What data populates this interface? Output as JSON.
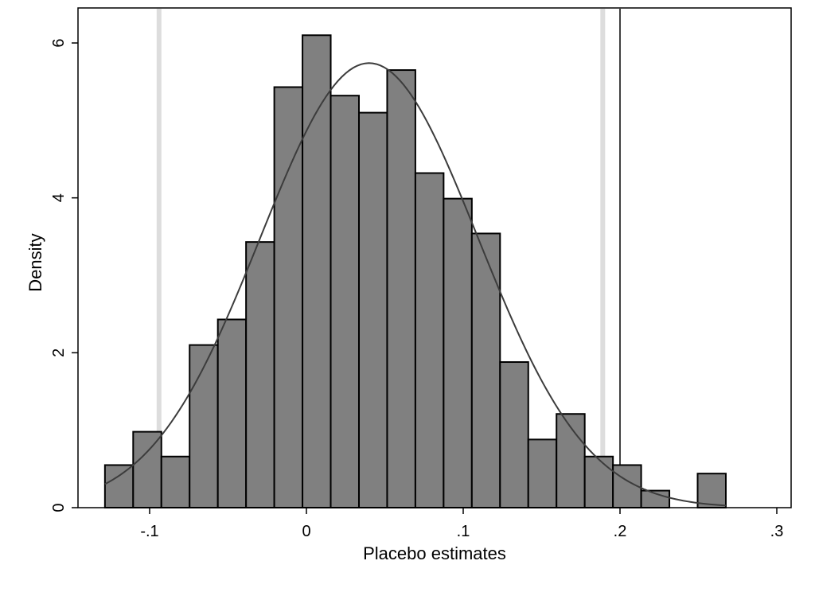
{
  "chart_data": {
    "type": "bar",
    "subtype": "histogram",
    "title": "",
    "xlabel": "Placebo estimates",
    "ylabel": "Density",
    "xlim": [
      -0.15,
      0.31
    ],
    "ylim": [
      0,
      6.35
    ],
    "x_ticks": [
      {
        "value": -0.1,
        "label": "-.1"
      },
      {
        "value": 0,
        "label": "0"
      },
      {
        "value": 0.1,
        "label": ".1"
      },
      {
        "value": 0.2,
        "label": ".2"
      },
      {
        "value": 0.3,
        "label": ".3"
      }
    ],
    "y_ticks": [
      {
        "value": 0,
        "label": "0"
      },
      {
        "value": 2,
        "label": "2"
      },
      {
        "value": 4,
        "label": "4"
      },
      {
        "value": 6,
        "label": "6"
      }
    ],
    "bins": [
      {
        "start": -0.1285,
        "end": -0.1105,
        "density": 0.55
      },
      {
        "start": -0.1105,
        "end": -0.0925,
        "density": 0.98
      },
      {
        "start": -0.0925,
        "end": -0.0745,
        "density": 0.66
      },
      {
        "start": -0.0745,
        "end": -0.0565,
        "density": 2.1
      },
      {
        "start": -0.0565,
        "end": -0.0385,
        "density": 2.43
      },
      {
        "start": -0.0385,
        "end": -0.0205,
        "density": 3.43
      },
      {
        "start": -0.0205,
        "end": -0.0025,
        "density": 5.43
      },
      {
        "start": -0.0025,
        "end": 0.0155,
        "density": 6.1
      },
      {
        "start": 0.0155,
        "end": 0.0335,
        "density": 5.32
      },
      {
        "start": 0.0335,
        "end": 0.0515,
        "density": 5.1
      },
      {
        "start": 0.0515,
        "end": 0.0695,
        "density": 5.65
      },
      {
        "start": 0.0695,
        "end": 0.0875,
        "density": 4.32
      },
      {
        "start": 0.0875,
        "end": 0.1055,
        "density": 3.99
      },
      {
        "start": 0.1055,
        "end": 0.1235,
        "density": 3.54
      },
      {
        "start": 0.1235,
        "end": 0.1415,
        "density": 1.88
      },
      {
        "start": 0.1415,
        "end": 0.1595,
        "density": 0.88
      },
      {
        "start": 0.1595,
        "end": 0.1775,
        "density": 1.21
      },
      {
        "start": 0.1775,
        "end": 0.1955,
        "density": 0.66
      },
      {
        "start": 0.1955,
        "end": 0.2135,
        "density": 0.55
      },
      {
        "start": 0.2135,
        "end": 0.2315,
        "density": 0.22
      },
      {
        "start": 0.2495,
        "end": 0.2675,
        "density": 0.44
      }
    ],
    "normal_curve": {
      "mean": 0.04,
      "sd": 0.0695,
      "x_range": [
        -0.1285,
        0.2675
      ]
    },
    "reference_lines": [
      {
        "x": -0.094,
        "style": "light-gray"
      },
      {
        "x": 0.189,
        "style": "light-gray"
      },
      {
        "x": 0.2,
        "style": "black"
      }
    ],
    "grid": false,
    "legend": "none",
    "colors": {
      "bar_fill": "#808080",
      "bar_edge": "#000000",
      "curve": "#3c3c3c",
      "light_line": "#dddddd",
      "black_line": "#000000"
    }
  }
}
